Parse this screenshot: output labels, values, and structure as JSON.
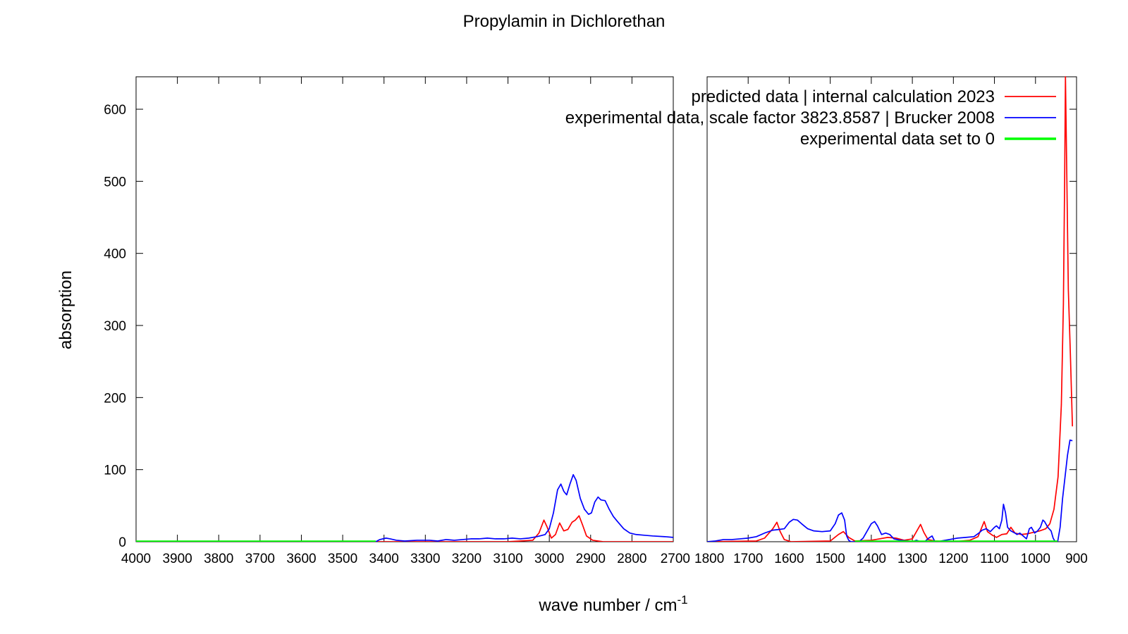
{
  "chart_data": {
    "type": "line",
    "title": "Propylamin in Dichlorethan",
    "xlabel": "wave number / cm",
    "xlabel_sup": "-1",
    "ylabel": "absorption",
    "ylim": [
      0,
      645
    ],
    "yticks": [
      0,
      100,
      200,
      300,
      400,
      500,
      600
    ],
    "grid": false,
    "legend_position": "top-right",
    "panels": [
      {
        "xlim": [
          4000,
          2700
        ],
        "xticks": [
          4000,
          3900,
          3800,
          3700,
          3600,
          3500,
          3400,
          3300,
          3200,
          3100,
          3000,
          2900,
          2800,
          2700
        ]
      },
      {
        "xlim": [
          1800,
          900
        ],
        "xticks": [
          1800,
          1700,
          1600,
          1500,
          1400,
          1300,
          1200,
          1100,
          1000,
          900
        ]
      }
    ],
    "series": [
      {
        "name": "predicted data | internal calculation 2023",
        "color": "#ff0000",
        "points": [
          [
            4000,
            0
          ],
          [
            3100,
            0
          ],
          [
            3040,
            2
          ],
          [
            3025,
            12
          ],
          [
            3013,
            30
          ],
          [
            3005,
            20
          ],
          [
            2995,
            5
          ],
          [
            2985,
            10
          ],
          [
            2975,
            26
          ],
          [
            2965,
            15
          ],
          [
            2955,
            17
          ],
          [
            2945,
            27
          ],
          [
            2937,
            30
          ],
          [
            2928,
            36
          ],
          [
            2920,
            24
          ],
          [
            2910,
            8
          ],
          [
            2895,
            2
          ],
          [
            2870,
            0
          ],
          [
            2700,
            0
          ],
          [
            1800,
            0
          ],
          [
            1680,
            1
          ],
          [
            1660,
            5
          ],
          [
            1640,
            18
          ],
          [
            1630,
            27
          ],
          [
            1622,
            14
          ],
          [
            1612,
            3
          ],
          [
            1595,
            0
          ],
          [
            1500,
            1
          ],
          [
            1480,
            10
          ],
          [
            1468,
            14
          ],
          [
            1455,
            6
          ],
          [
            1440,
            1
          ],
          [
            1400,
            2
          ],
          [
            1380,
            4
          ],
          [
            1360,
            6
          ],
          [
            1340,
            5
          ],
          [
            1320,
            2
          ],
          [
            1300,
            4
          ],
          [
            1290,
            14
          ],
          [
            1280,
            24
          ],
          [
            1272,
            13
          ],
          [
            1262,
            3
          ],
          [
            1245,
            1
          ],
          [
            1200,
            0
          ],
          [
            1160,
            2
          ],
          [
            1140,
            7
          ],
          [
            1125,
            28
          ],
          [
            1117,
            14
          ],
          [
            1105,
            9
          ],
          [
            1095,
            6
          ],
          [
            1082,
            10
          ],
          [
            1070,
            11
          ],
          [
            1060,
            20
          ],
          [
            1050,
            12
          ],
          [
            1035,
            10
          ],
          [
            1020,
            11
          ],
          [
            1005,
            13
          ],
          [
            990,
            15
          ],
          [
            975,
            18
          ],
          [
            965,
            25
          ],
          [
            955,
            45
          ],
          [
            945,
            90
          ],
          [
            937,
            190
          ],
          [
            932,
            330
          ],
          [
            929,
            500
          ],
          [
            927,
            645
          ],
          [
            924,
            520
          ],
          [
            920,
            350
          ],
          [
            915,
            260
          ],
          [
            910,
            160
          ]
        ]
      },
      {
        "name": "experimental data, scale factor 3823.8587 | Brucker 2008",
        "color": "#0000ff",
        "points": [
          [
            3420,
            0
          ],
          [
            3410,
            3
          ],
          [
            3395,
            5
          ],
          [
            3385,
            4
          ],
          [
            3370,
            2
          ],
          [
            3350,
            1
          ],
          [
            3320,
            2
          ],
          [
            3290,
            2
          ],
          [
            3270,
            1
          ],
          [
            3250,
            3
          ],
          [
            3230,
            2
          ],
          [
            3210,
            3
          ],
          [
            3190,
            4
          ],
          [
            3170,
            4
          ],
          [
            3150,
            5
          ],
          [
            3130,
            4
          ],
          [
            3110,
            4
          ],
          [
            3090,
            5
          ],
          [
            3070,
            4
          ],
          [
            3050,
            5
          ],
          [
            3030,
            7
          ],
          [
            3010,
            10
          ],
          [
            3000,
            18
          ],
          [
            2990,
            40
          ],
          [
            2980,
            72
          ],
          [
            2972,
            80
          ],
          [
            2965,
            70
          ],
          [
            2958,
            65
          ],
          [
            2950,
            80
          ],
          [
            2942,
            93
          ],
          [
            2935,
            85
          ],
          [
            2925,
            60
          ],
          [
            2915,
            45
          ],
          [
            2905,
            38
          ],
          [
            2898,
            40
          ],
          [
            2890,
            55
          ],
          [
            2882,
            62
          ],
          [
            2875,
            58
          ],
          [
            2865,
            57
          ],
          [
            2855,
            45
          ],
          [
            2845,
            35
          ],
          [
            2835,
            28
          ],
          [
            2820,
            18
          ],
          [
            2805,
            12
          ],
          [
            2790,
            10
          ],
          [
            2770,
            9
          ],
          [
            2750,
            8
          ],
          [
            2720,
            7
          ],
          [
            2700,
            6
          ],
          [
            1800,
            0
          ],
          [
            1780,
            1
          ],
          [
            1760,
            3
          ],
          [
            1740,
            3
          ],
          [
            1720,
            4
          ],
          [
            1700,
            5
          ],
          [
            1680,
            7
          ],
          [
            1660,
            12
          ],
          [
            1640,
            16
          ],
          [
            1625,
            17
          ],
          [
            1612,
            18
          ],
          [
            1600,
            27
          ],
          [
            1590,
            31
          ],
          [
            1580,
            30
          ],
          [
            1570,
            25
          ],
          [
            1555,
            18
          ],
          [
            1540,
            15
          ],
          [
            1520,
            14
          ],
          [
            1500,
            15
          ],
          [
            1488,
            25
          ],
          [
            1480,
            37
          ],
          [
            1472,
            40
          ],
          [
            1465,
            30
          ],
          [
            1460,
            8
          ],
          [
            1455,
            2
          ],
          [
            1450,
            0
          ],
          [
            1440,
            0
          ],
          [
            1430,
            0
          ],
          [
            1420,
            5
          ],
          [
            1410,
            15
          ],
          [
            1400,
            25
          ],
          [
            1392,
            28
          ],
          [
            1385,
            22
          ],
          [
            1375,
            10
          ],
          [
            1365,
            12
          ],
          [
            1355,
            10
          ],
          [
            1345,
            4
          ],
          [
            1330,
            2
          ],
          [
            1310,
            1
          ],
          [
            1300,
            0
          ],
          [
            1290,
            2
          ],
          [
            1280,
            0
          ],
          [
            1270,
            0
          ],
          [
            1260,
            5
          ],
          [
            1252,
            8
          ],
          [
            1245,
            0
          ],
          [
            1238,
            0
          ],
          [
            1230,
            1
          ],
          [
            1210,
            3
          ],
          [
            1190,
            5
          ],
          [
            1170,
            6
          ],
          [
            1150,
            7
          ],
          [
            1138,
            12
          ],
          [
            1130,
            16
          ],
          [
            1120,
            18
          ],
          [
            1110,
            14
          ],
          [
            1100,
            20
          ],
          [
            1095,
            22
          ],
          [
            1088,
            18
          ],
          [
            1082,
            30
          ],
          [
            1078,
            52
          ],
          [
            1073,
            40
          ],
          [
            1068,
            20
          ],
          [
            1060,
            15
          ],
          [
            1050,
            12
          ],
          [
            1045,
            10
          ],
          [
            1038,
            12
          ],
          [
            1030,
            8
          ],
          [
            1022,
            4
          ],
          [
            1015,
            18
          ],
          [
            1010,
            20
          ],
          [
            1002,
            12
          ],
          [
            995,
            15
          ],
          [
            988,
            20
          ],
          [
            982,
            30
          ],
          [
            978,
            28
          ],
          [
            970,
            20
          ],
          [
            962,
            15
          ],
          [
            957,
            5
          ],
          [
            952,
            0
          ],
          [
            946,
            0
          ],
          [
            940,
            20
          ],
          [
            934,
            60
          ],
          [
            928,
            90
          ],
          [
            922,
            120
          ],
          [
            916,
            141
          ],
          [
            910,
            140
          ]
        ]
      },
      {
        "name": "experimental data set to 0",
        "color": "#00ff00",
        "points": [
          [
            4000,
            0
          ],
          [
            3420,
            0
          ],
          [
            1440,
            0
          ],
          [
            1430,
            0
          ],
          [
            1300,
            0
          ],
          [
            1290,
            0
          ],
          [
            1270,
            0
          ],
          [
            1260,
            0
          ],
          [
            1245,
            0
          ],
          [
            1230,
            0
          ],
          [
            952,
            0
          ],
          [
            946,
            0
          ]
        ]
      }
    ]
  }
}
